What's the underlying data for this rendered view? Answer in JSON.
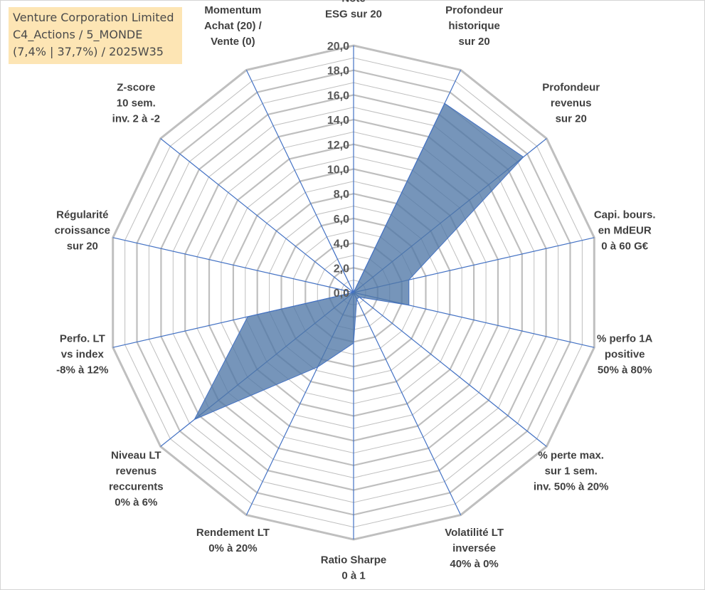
{
  "header": {
    "line1": "Venture Corporation Limited",
    "line2": "C4_Actions / 5_MONDE",
    "line3": "(7,4% | 37,7%) / 2025W35"
  },
  "chart_data": {
    "type": "radar",
    "title": "",
    "rlim": [
      0,
      20
    ],
    "ticks": [
      "0,0",
      "2,0",
      "4,0",
      "6,0",
      "8,0",
      "10,0",
      "12,0",
      "14,0",
      "16,0",
      "18,0",
      "20,0"
    ],
    "axes": [
      [
        "Note",
        "ESG sur 20"
      ],
      [
        "Profondeur",
        "historique",
        "sur 20"
      ],
      [
        "Profondeur",
        "revenus",
        "sur 20"
      ],
      [
        "Capi. bours.",
        "en MdEUR",
        "0 à 60 G€"
      ],
      [
        "% perfo 1A",
        "positive",
        "50% à 80%"
      ],
      [
        "% perte max.",
        "sur 1 sem.",
        "inv. 50% à 20%"
      ],
      [
        "Volatilité LT",
        "inversée",
        "40% à 0%"
      ],
      [
        "Ratio Sharpe",
        "0 à 1"
      ],
      [
        "Rendement LT",
        "0% à 20%"
      ],
      [
        "Niveau LT",
        "revenus",
        "reccurents",
        "0% à 6%"
      ],
      [
        "Perfo. LT",
        "vs index",
        "-8% à 12%"
      ],
      [
        "Régularité",
        "croissance",
        "sur 20"
      ],
      [
        "Z-score",
        "10 sem.",
        "inv. 2 à -2"
      ],
      [
        "Momentum",
        "Achat (20) /",
        "Vente (0)"
      ]
    ],
    "series": [
      {
        "values": [
          0,
          17.0,
          17.6,
          4.6,
          4.6,
          0.6,
          0.6,
          4.1,
          6.7,
          16.5,
          8.8,
          0,
          0,
          4.3
        ]
      }
    ],
    "grid": true,
    "colors": {
      "fill": "#4f77a6",
      "stroke": "#4472c4",
      "grid": "#bfbfbf",
      "spoke": "#4472c4"
    }
  }
}
